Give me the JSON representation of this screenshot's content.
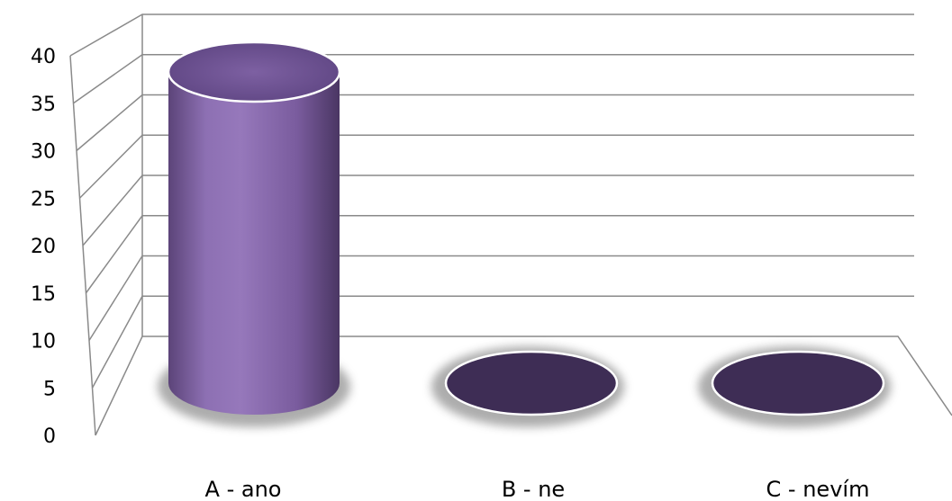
{
  "chart_data": {
    "type": "bar",
    "style": "3d-cylinder",
    "categories": [
      "A - ano",
      "B - ne",
      "C - nevím"
    ],
    "values": [
      37,
      0,
      0
    ],
    "ylim": [
      0,
      40
    ],
    "yticks": [
      0,
      5,
      10,
      15,
      20,
      25,
      30,
      35,
      40
    ],
    "grid": true,
    "legend": "none",
    "title": "",
    "xlabel": "",
    "ylabel": "",
    "colors": {
      "bar_body": "#8B6CB0",
      "bar_top": "#6A4E8E",
      "bar_base": "#3E2D55",
      "grid": "#8a8a8a"
    }
  }
}
